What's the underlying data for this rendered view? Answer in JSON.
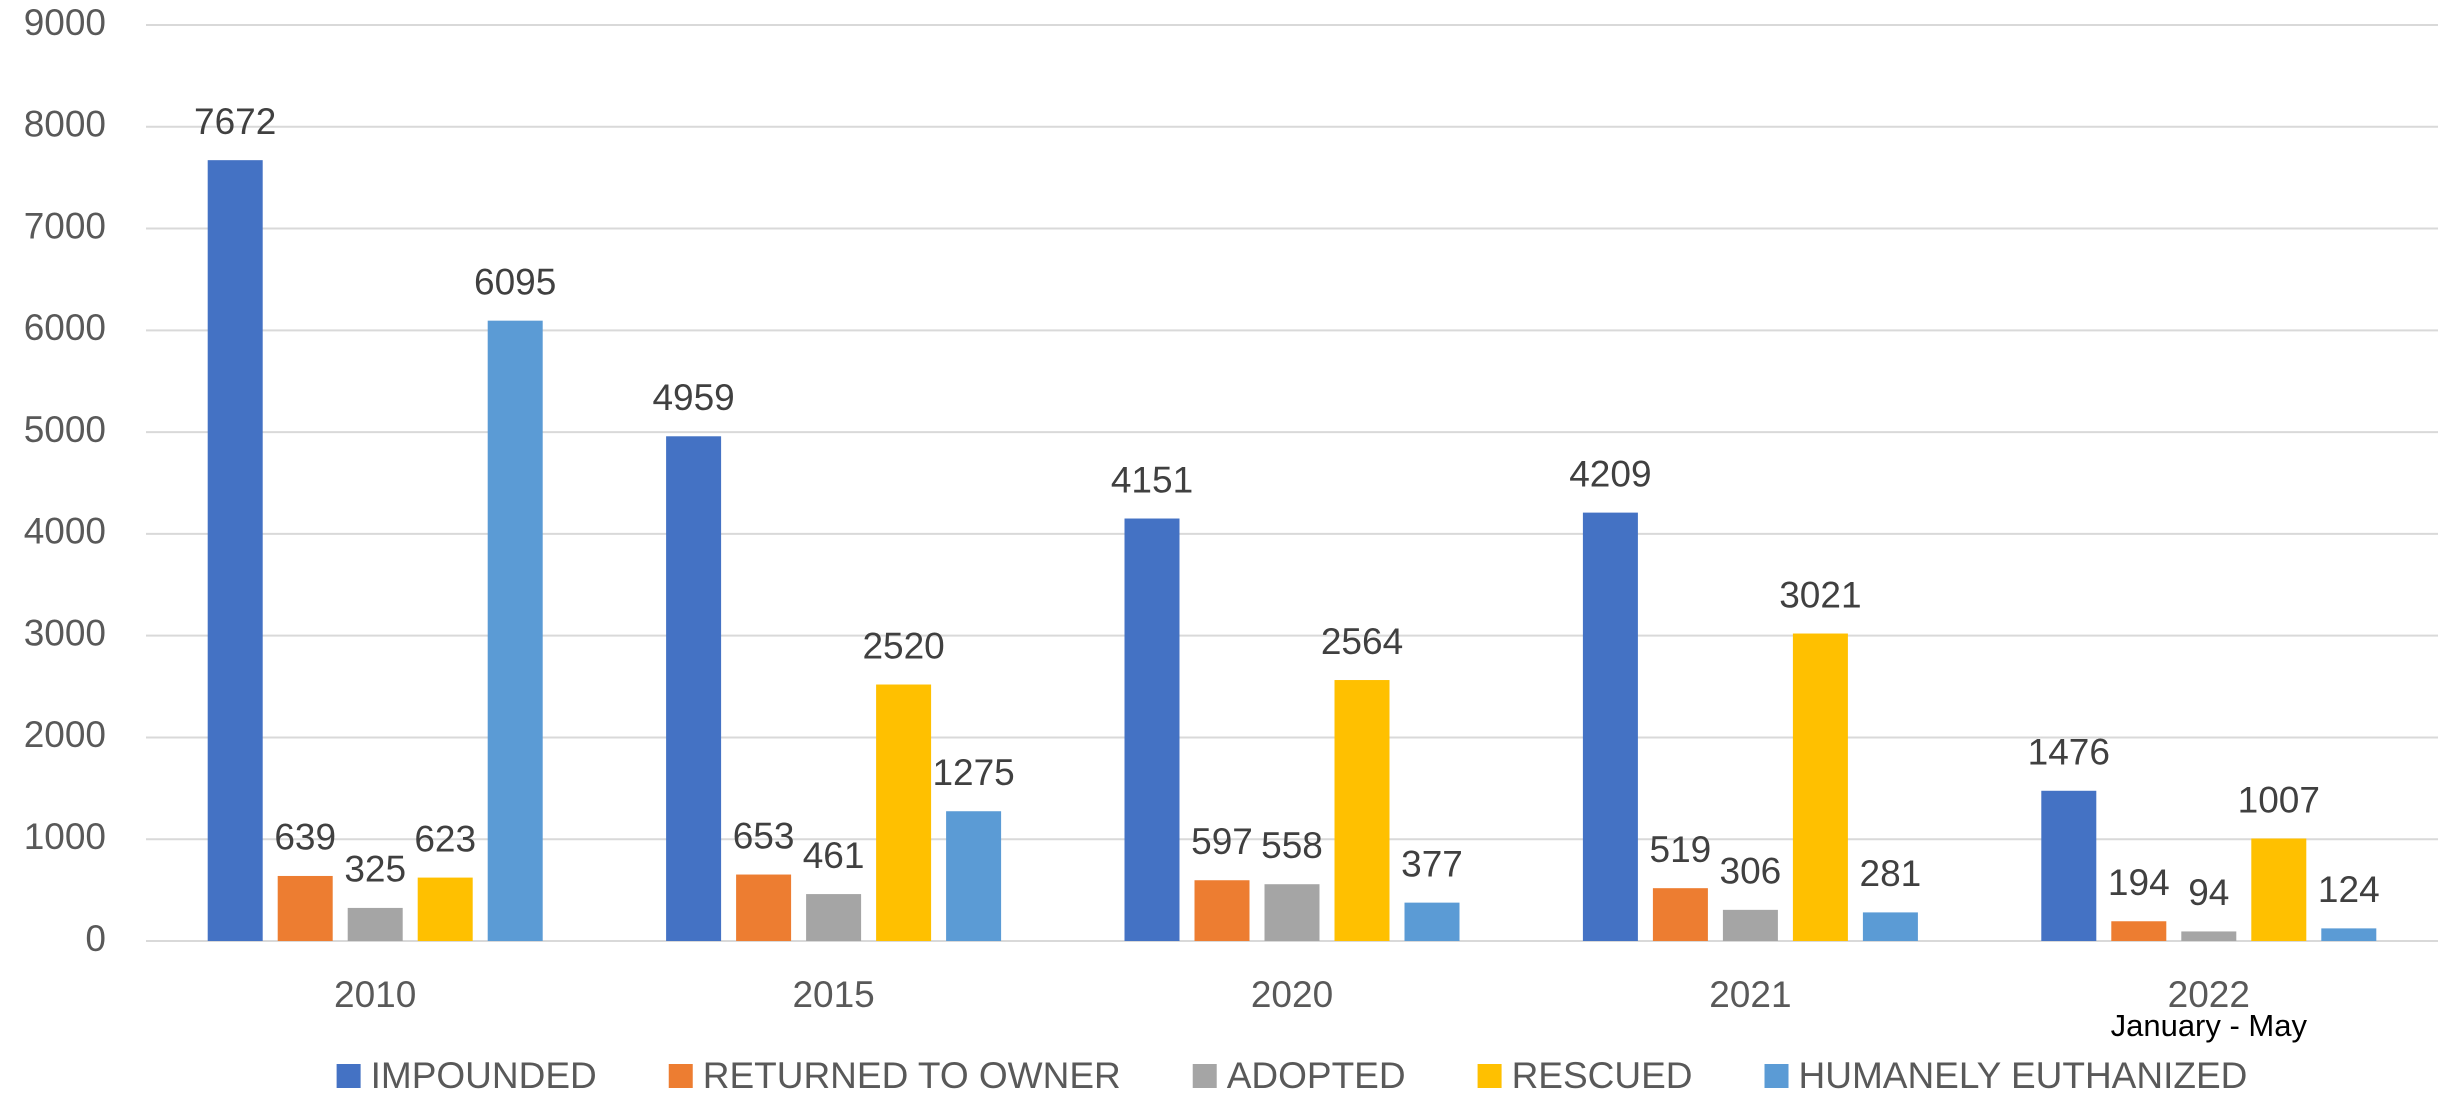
{
  "chart_data": {
    "type": "bar",
    "categories": [
      "2010",
      "2015",
      "2020",
      "2021",
      "2022"
    ],
    "series": [
      {
        "name": "IMPOUNDED",
        "color": "#4472c4",
        "values": [
          7672,
          4959,
          4151,
          4209,
          1476
        ]
      },
      {
        "name": "RETURNED TO OWNER",
        "color": "#ed7d31",
        "values": [
          639,
          653,
          597,
          519,
          194
        ]
      },
      {
        "name": "ADOPTED",
        "color": "#a5a5a5",
        "values": [
          325,
          461,
          558,
          306,
          94
        ]
      },
      {
        "name": "RESCUED",
        "color": "#ffc000",
        "values": [
          623,
          2520,
          2564,
          3021,
          1007
        ]
      },
      {
        "name": "HUMANELY EUTHANIZED",
        "color": "#5b9bd5",
        "values": [
          6095,
          1275,
          377,
          281,
          124
        ]
      }
    ],
    "annotation": "January - May",
    "ylim": [
      0,
      9000
    ],
    "yticks": [
      0,
      1000,
      2000,
      3000,
      4000,
      5000,
      6000,
      7000,
      8000,
      9000
    ],
    "grid": true,
    "legend": "bottom"
  }
}
